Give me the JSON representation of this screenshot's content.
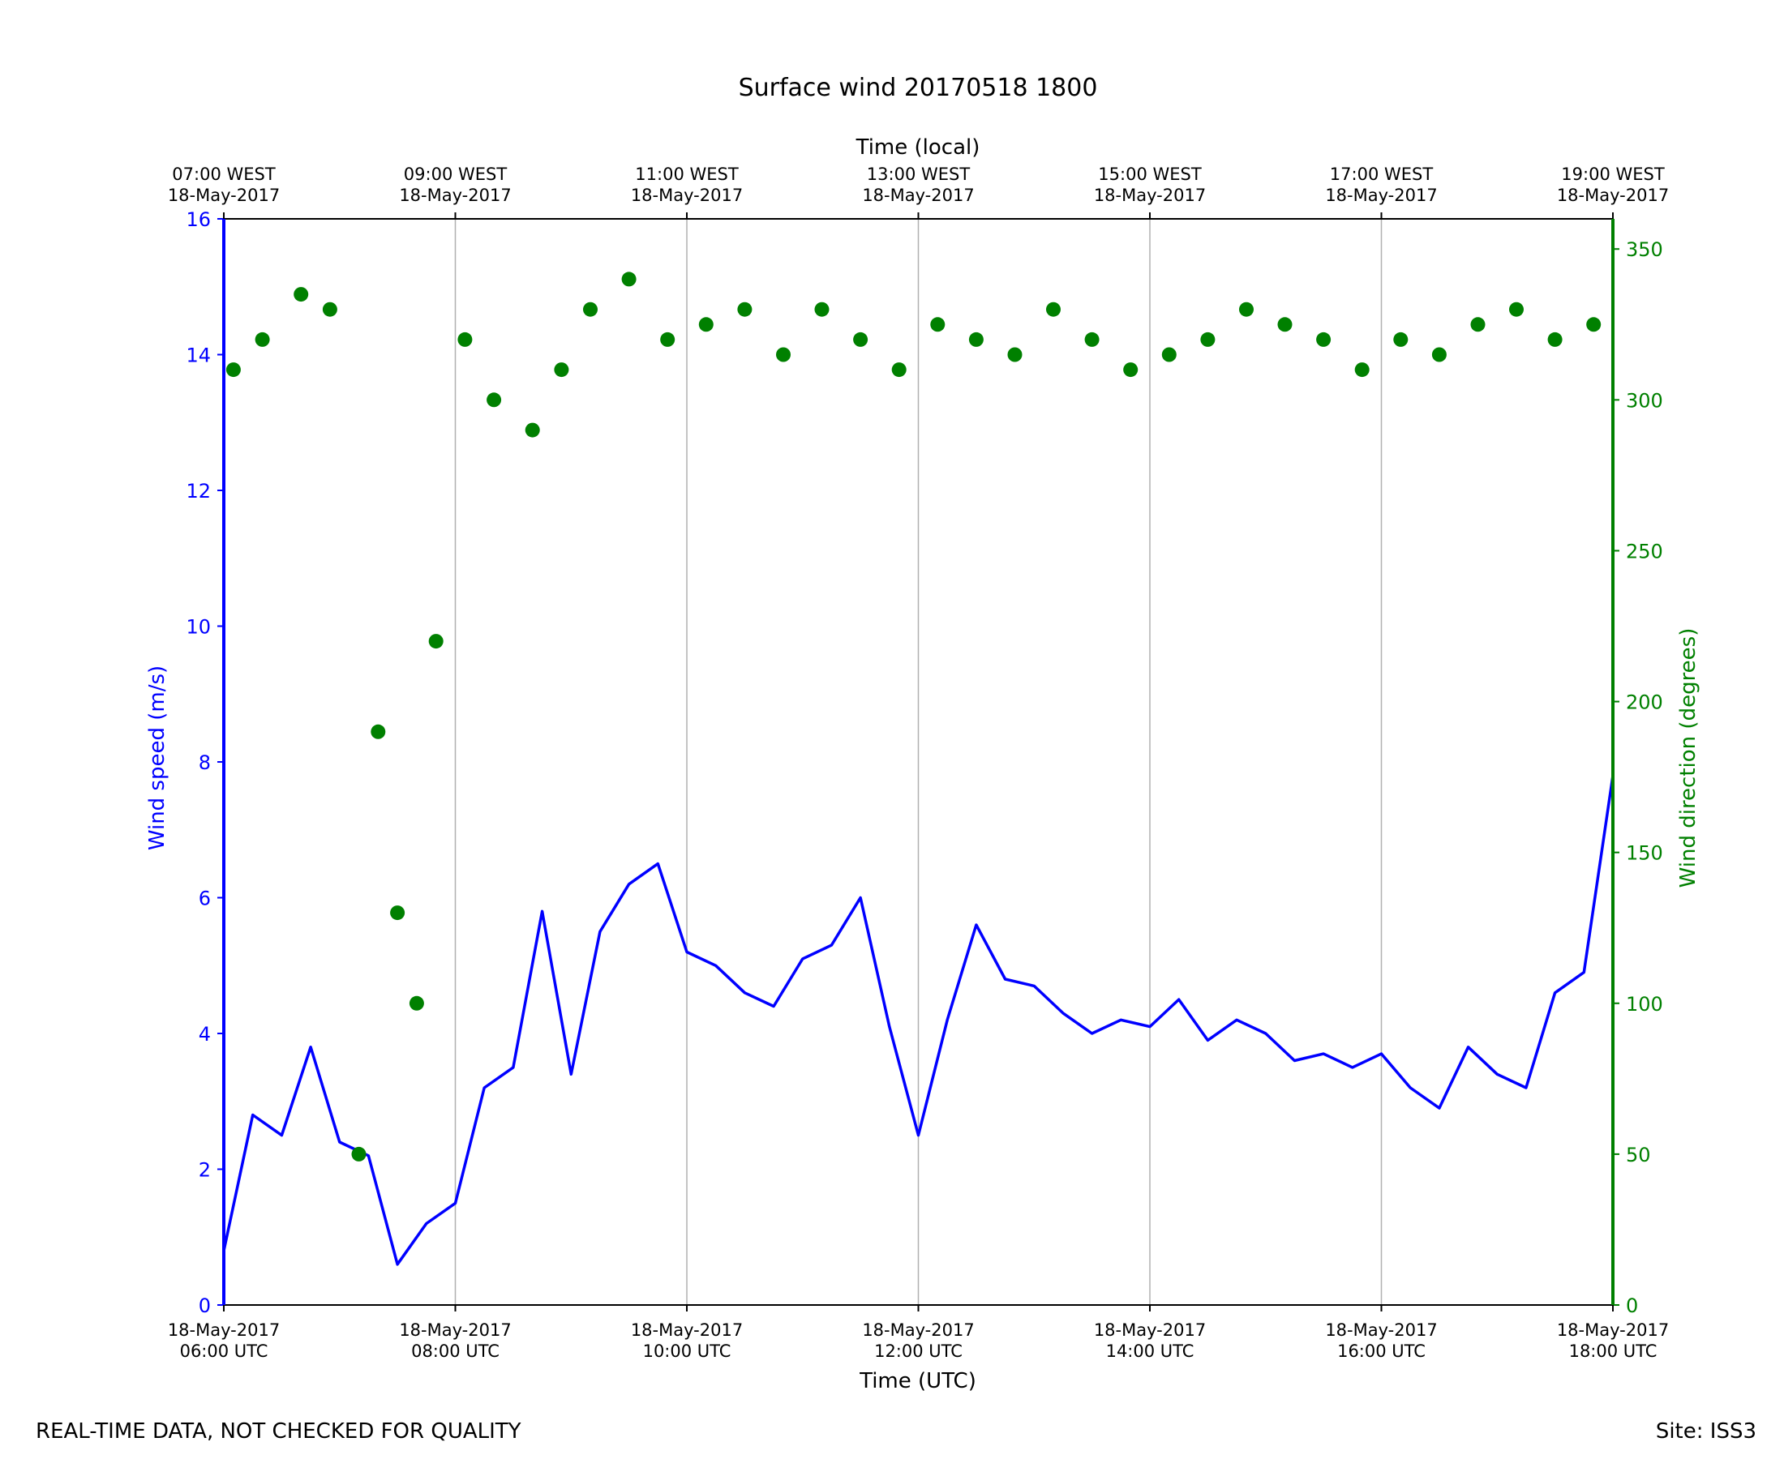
{
  "chart_data": {
    "type": "line",
    "title": "Surface wind 20170518 1800",
    "top_xlabel": "Time (local)",
    "xlabel": "Time (UTC)",
    "ylabel_left": "Wind speed (m/s)",
    "ylabel_right": "Wind direction (degrees)",
    "xlim_hours_utc": [
      6,
      18
    ],
    "ylim_left": [
      0,
      16
    ],
    "ylim_right": [
      0,
      360
    ],
    "left_ticks": [
      "0",
      "2",
      "4",
      "6",
      "8",
      "10",
      "12",
      "14",
      "16"
    ],
    "right_ticks": [
      "0",
      "50",
      "100",
      "150",
      "200",
      "250",
      "300",
      "350"
    ],
    "bottom_ticks": [
      {
        "line1": "18-May-2017",
        "line2": "06:00 UTC"
      },
      {
        "line1": "18-May-2017",
        "line2": "08:00 UTC"
      },
      {
        "line1": "18-May-2017",
        "line2": "10:00 UTC"
      },
      {
        "line1": "18-May-2017",
        "line2": "12:00 UTC"
      },
      {
        "line1": "18-May-2017",
        "line2": "14:00 UTC"
      },
      {
        "line1": "18-May-2017",
        "line2": "16:00 UTC"
      },
      {
        "line1": "18-May-2017",
        "line2": "18:00 UTC"
      }
    ],
    "top_ticks": [
      {
        "line1": "07:00 WEST",
        "line2": "18-May-2017"
      },
      {
        "line1": "09:00 WEST",
        "line2": "18-May-2017"
      },
      {
        "line1": "11:00 WEST",
        "line2": "18-May-2017"
      },
      {
        "line1": "13:00 WEST",
        "line2": "18-May-2017"
      },
      {
        "line1": "15:00 WEST",
        "line2": "18-May-2017"
      },
      {
        "line1": "17:00 WEST",
        "line2": "18-May-2017"
      },
      {
        "line1": "19:00 WEST",
        "line2": "18-May-2017"
      }
    ],
    "grid": "vertical",
    "series": [
      {
        "color": "#0000ff",
        "type": "line",
        "axis": "left",
        "x_utc": [
          "06:00",
          "06:15",
          "06:30",
          "06:45",
          "07:00",
          "07:15",
          "07:30",
          "07:45",
          "08:00",
          "08:15",
          "08:30",
          "08:45",
          "09:00",
          "09:15",
          "09:30",
          "09:45",
          "10:00",
          "10:15",
          "10:30",
          "10:45",
          "11:00",
          "11:15",
          "11:30",
          "11:45",
          "12:00",
          "12:15",
          "12:30",
          "12:45",
          "13:00",
          "13:15",
          "13:30",
          "13:45",
          "14:00",
          "14:15",
          "14:30",
          "14:45",
          "15:00",
          "15:15",
          "15:30",
          "15:45",
          "16:00",
          "16:15",
          "16:30",
          "16:45",
          "17:00",
          "17:15",
          "17:30",
          "17:45",
          "18:00"
        ],
        "values": [
          0.8,
          2.8,
          2.5,
          3.8,
          2.4,
          2.2,
          0.6,
          1.2,
          1.5,
          3.2,
          3.5,
          5.8,
          3.4,
          5.5,
          6.2,
          6.5,
          5.2,
          5.0,
          4.6,
          4.4,
          5.1,
          5.3,
          6.0,
          4.1,
          2.5,
          4.2,
          5.6,
          4.8,
          4.7,
          4.3,
          4.0,
          4.2,
          4.1,
          4.5,
          3.9,
          4.2,
          4.0,
          3.6,
          3.7,
          3.5,
          3.7,
          3.2,
          2.9,
          3.8,
          3.4,
          3.2,
          4.6,
          4.9,
          7.8
        ]
      },
      {
        "color": "#008000",
        "type": "scatter",
        "axis": "right",
        "x_utc": [
          "06:05",
          "06:20",
          "06:40",
          "06:55",
          "07:10",
          "07:20",
          "07:30",
          "07:40",
          "07:50",
          "08:05",
          "08:20",
          "08:40",
          "08:55",
          "09:10",
          "09:30",
          "09:50",
          "10:10",
          "10:30",
          "10:50",
          "11:10",
          "11:30",
          "11:50",
          "12:10",
          "12:30",
          "12:50",
          "13:10",
          "13:30",
          "13:50",
          "14:10",
          "14:30",
          "14:50",
          "15:10",
          "15:30",
          "15:50",
          "16:10",
          "16:30",
          "16:50",
          "17:10",
          "17:30",
          "17:50"
        ],
        "values": [
          310,
          320,
          335,
          330,
          50,
          190,
          130,
          100,
          220,
          320,
          300,
          290,
          310,
          330,
          340,
          320,
          325,
          330,
          315,
          330,
          320,
          310,
          325,
          320,
          315,
          330,
          320,
          310,
          315,
          320,
          330,
          325,
          320,
          310,
          320,
          315,
          325,
          330,
          320,
          325
        ]
      }
    ]
  },
  "footer": {
    "left": "REAL-TIME DATA, NOT CHECKED FOR QUALITY",
    "right": "Site: ISS3"
  },
  "colors": {
    "speed": "#0000ff",
    "direction": "#008000",
    "grid": "#b0b0b0"
  }
}
